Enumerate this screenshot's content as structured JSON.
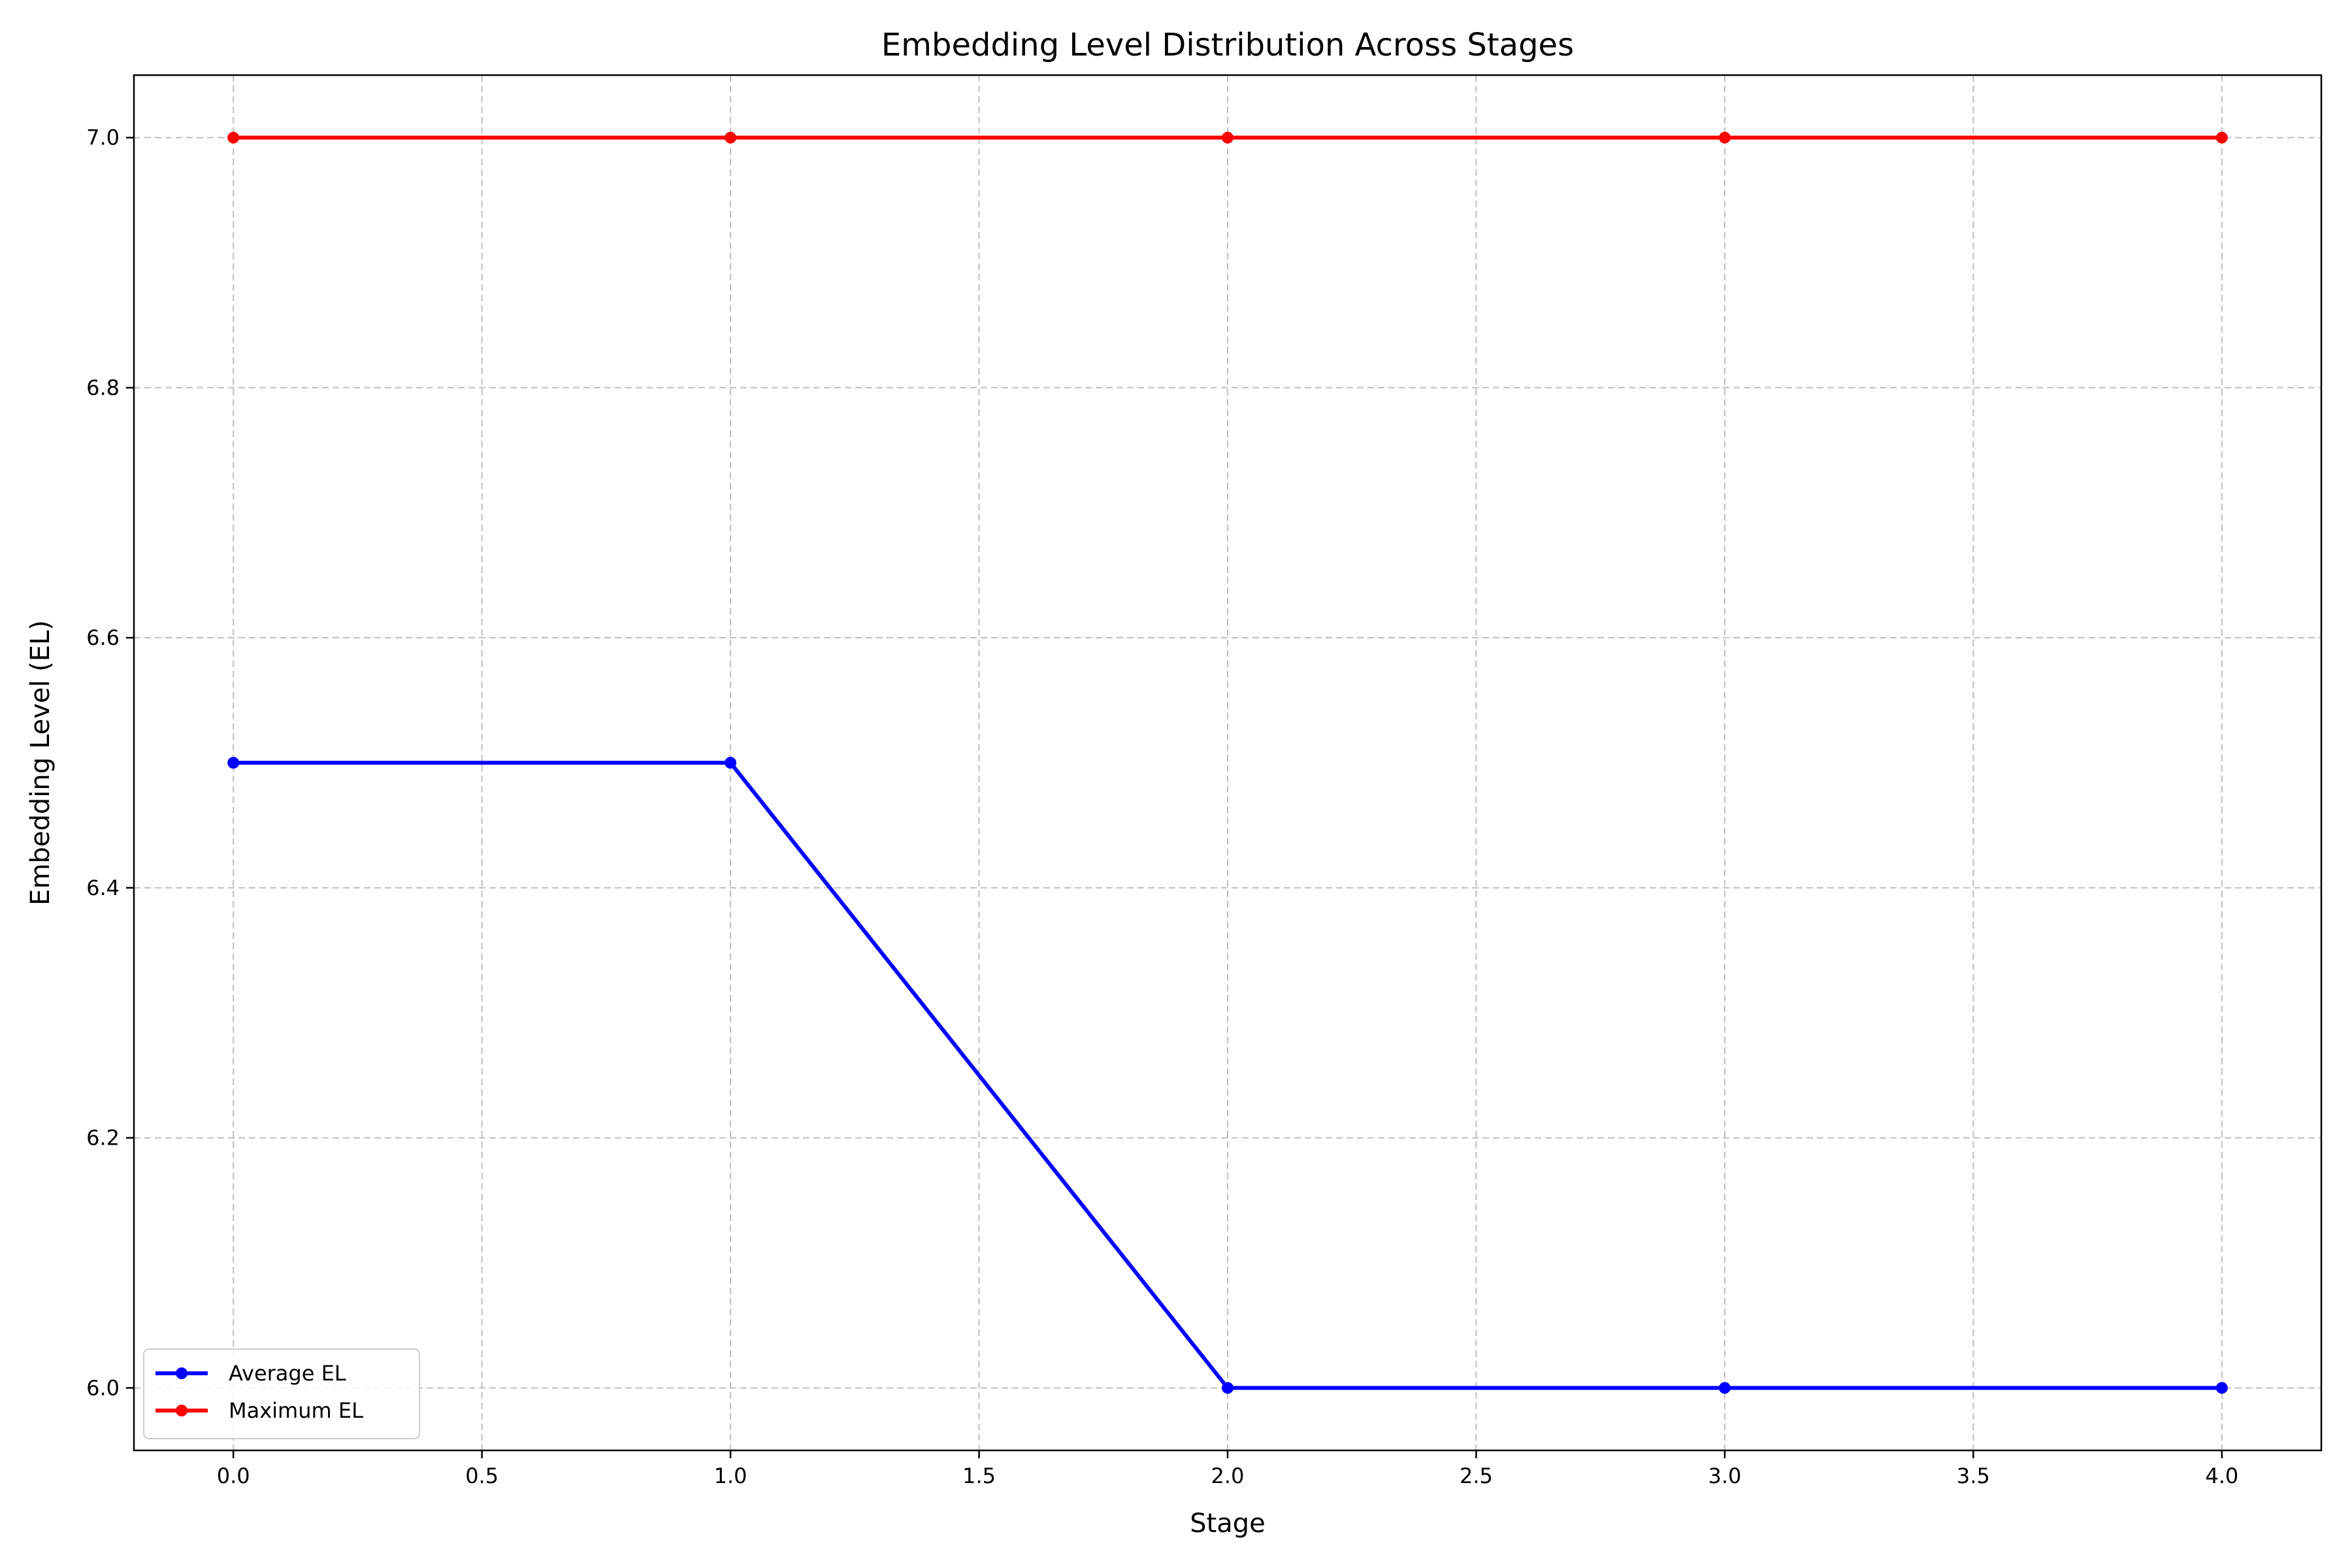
{
  "chart_data": {
    "type": "line",
    "title": "Embedding Level Distribution Across Stages",
    "xlabel": "Stage",
    "ylabel": "Embedding Level (EL)",
    "xlim": [
      -0.2,
      4.2
    ],
    "ylim": [
      5.95,
      7.05
    ],
    "xticks": [
      0.0,
      0.5,
      1.0,
      1.5,
      2.0,
      2.5,
      3.0,
      3.5,
      4.0
    ],
    "xtick_labels": [
      "0.0",
      "0.5",
      "1.0",
      "1.5",
      "2.0",
      "2.5",
      "3.0",
      "3.5",
      "4.0"
    ],
    "yticks": [
      6.0,
      6.2,
      6.4,
      6.6,
      6.8,
      7.0
    ],
    "ytick_labels": [
      "6.0",
      "6.2",
      "6.4",
      "6.6",
      "6.8",
      "7.0"
    ],
    "grid": true,
    "legend_position": "lower-left",
    "x": [
      0,
      1,
      2,
      3,
      4
    ],
    "series": [
      {
        "name": "Average EL",
        "values": [
          6.5,
          6.5,
          6.0,
          6.0,
          6.0
        ],
        "color": "#0000ff"
      },
      {
        "name": "Maximum EL",
        "values": [
          7.0,
          7.0,
          7.0,
          7.0,
          7.0
        ],
        "color": "#ff0000"
      }
    ]
  }
}
